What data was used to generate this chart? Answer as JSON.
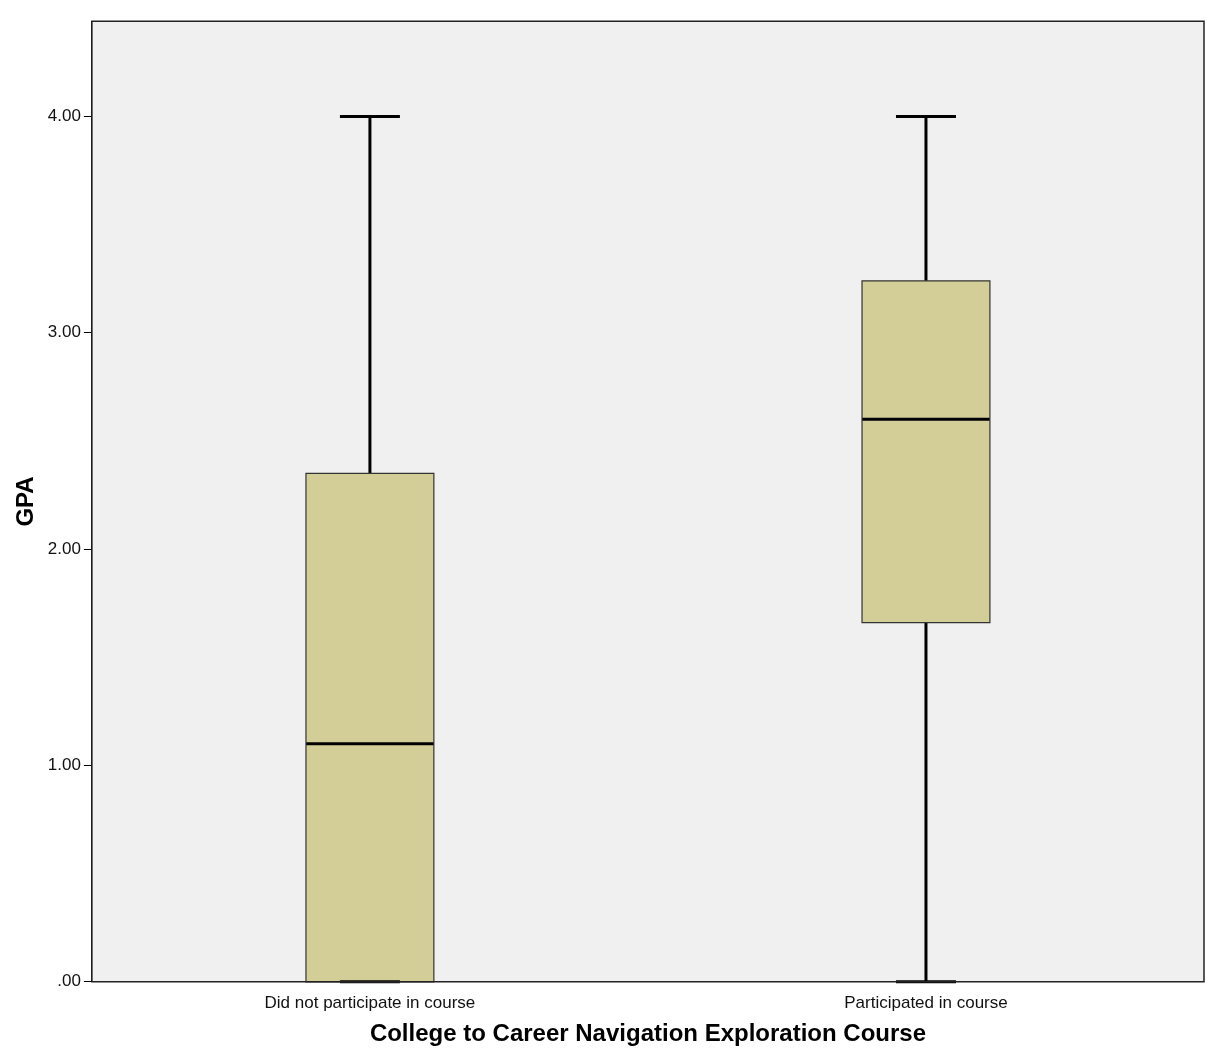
{
  "chart_data": {
    "type": "box",
    "xlabel": "College to Career Navigation Exploration Course",
    "ylabel": "GPA",
    "categories": [
      "Did not participate in course",
      "Participated in course"
    ],
    "color": "#d3ce97",
    "boxes": [
      {
        "low": 0,
        "q1": 0,
        "median": 1.1,
        "q3": 2.35,
        "high": 4
      },
      {
        "low": 0,
        "q1": 1.66,
        "median": 2.6,
        "q3": 3.24,
        "high": 4
      }
    ],
    "ylim": [
      0,
      4.44
    ],
    "yticks": [
      {
        "value": 0,
        "label": ".00"
      },
      {
        "value": 1,
        "label": "1.00"
      },
      {
        "value": 2,
        "label": "2.00"
      },
      {
        "value": 3,
        "label": "3.00"
      },
      {
        "value": 4,
        "label": "4.00"
      }
    ]
  }
}
